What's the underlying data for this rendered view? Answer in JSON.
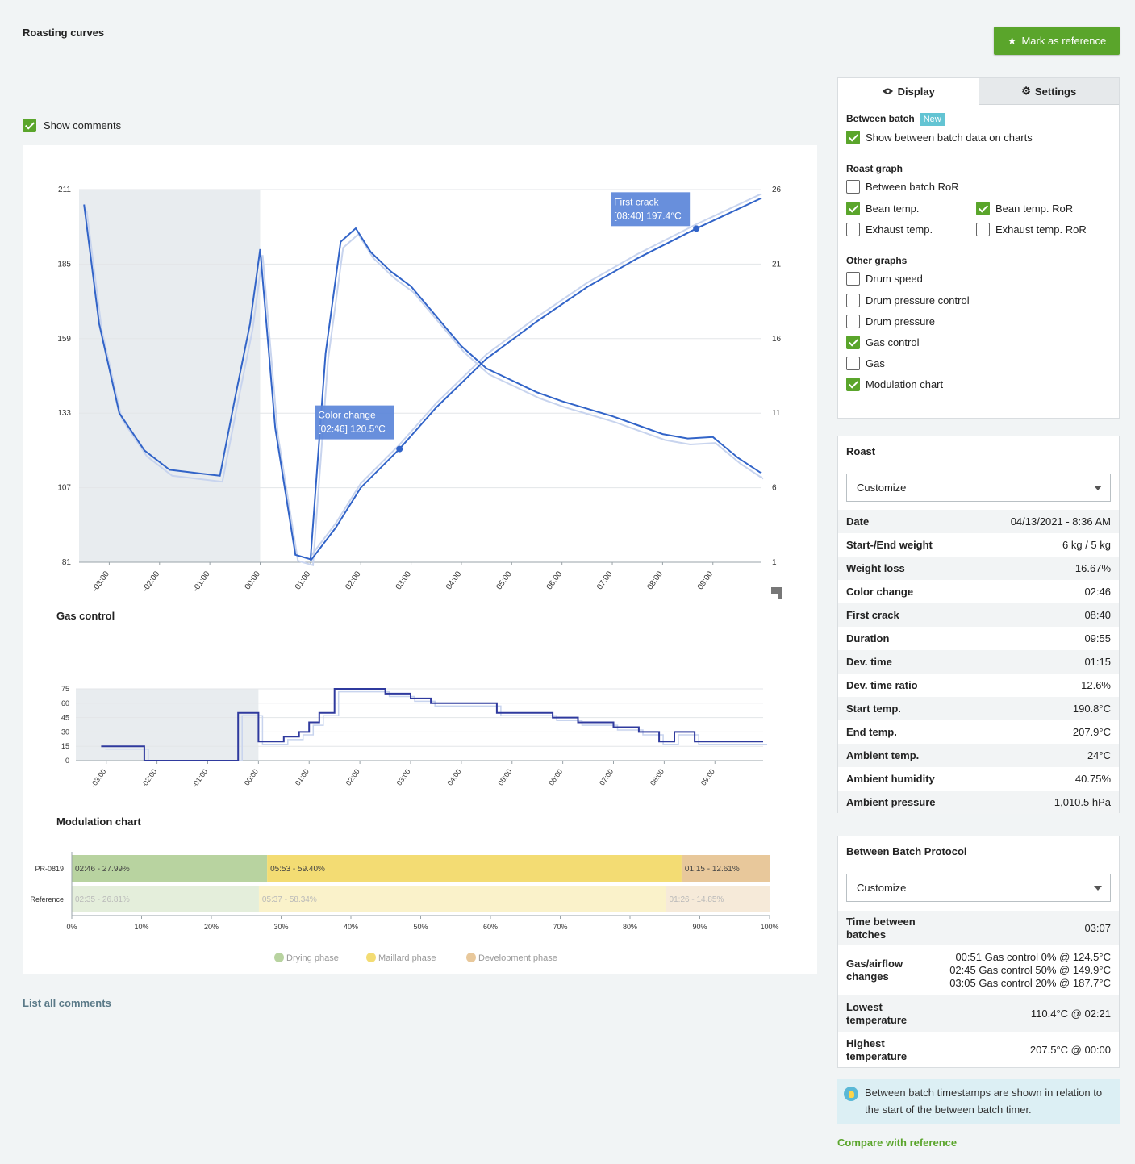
{
  "header": {
    "title": "Roasting curves",
    "mark_reference_label": "Mark as reference"
  },
  "show_comments_label": "Show comments",
  "list_comments_label": "List all comments",
  "compare_label": "Compare with reference",
  "colors": {
    "accent": "#5aa52b",
    "bean": "#3264c8",
    "reference": "#c8d4ee",
    "drying": "#b8d3a0",
    "maillard": "#f3dc73",
    "development": "#e8c89b"
  },
  "display_panel": {
    "tabs": {
      "display": "Display",
      "settings": "Settings"
    },
    "between_batch": {
      "title": "Between batch",
      "badge": "New",
      "show_label": "Show between batch data on charts"
    },
    "roast_graph": {
      "title": "Roast graph",
      "between_batch_ror": "Between batch RoR",
      "bean_temp": "Bean temp.",
      "bean_temp_ror": "Bean temp. RoR",
      "exhaust_temp": "Exhaust temp.",
      "exhaust_temp_ror": "Exhaust temp. RoR"
    },
    "other_graphs": {
      "title": "Other graphs",
      "drum_speed": "Drum speed",
      "drum_pressure_control": "Drum pressure control",
      "drum_pressure": "Drum pressure",
      "gas_control": "Gas control",
      "gas": "Gas",
      "modulation_chart": "Modulation chart"
    }
  },
  "roast_panel": {
    "title": "Roast",
    "select_value": "Customize",
    "rows": [
      {
        "k": "Date",
        "v": "04/13/2021 - 8:36 AM"
      },
      {
        "k": "Start-/End weight",
        "v": "6 kg / 5 kg"
      },
      {
        "k": "Weight loss",
        "v": "-16.67%"
      },
      {
        "k": "Color change",
        "v": "02:46"
      },
      {
        "k": "First crack",
        "v": "08:40"
      },
      {
        "k": "Duration",
        "v": "09:55"
      },
      {
        "k": "Dev. time",
        "v": "01:15"
      },
      {
        "k": "Dev. time ratio",
        "v": "12.6%"
      },
      {
        "k": "Start temp.",
        "v": "190.8°C"
      },
      {
        "k": "End temp.",
        "v": "207.9°C"
      },
      {
        "k": "Ambient temp.",
        "v": "24°C"
      },
      {
        "k": "Ambient humidity",
        "v": "40.75%"
      },
      {
        "k": "Ambient pressure",
        "v": "1,010.5 hPa"
      }
    ]
  },
  "bb_panel": {
    "title": "Between Batch Protocol",
    "select_value": "Customize",
    "time_between_label": "Time between batches",
    "time_between_value": "03:07",
    "gas_label": "Gas/airflow changes",
    "gas_changes": [
      "00:51 Gas control 0% @ 124.5°C",
      "02:45 Gas control 50% @ 149.9°C",
      "03:05 Gas control 20% @ 187.7°C"
    ],
    "lowest_label": "Lowest temperature",
    "lowest_value": "110.4°C @ 02:21",
    "highest_label": "Highest temperature",
    "highest_value": "207.5°C @ 00:00"
  },
  "info_text": "Between batch timestamps are shown in relation to the start of the between batch timer.",
  "chart_data": [
    {
      "type": "line",
      "title": "",
      "x_ticks": [
        "-03:00",
        "-02:00",
        "-01:00",
        "00:00",
        "01:00",
        "02:00",
        "03:00",
        "04:00",
        "05:00",
        "06:00",
        "07:00",
        "08:00",
        "09:00"
      ],
      "xlim": [
        -3.6,
        9.95
      ],
      "ylim": [
        81,
        211
      ],
      "y_ticks": [
        81,
        107,
        133,
        159,
        185,
        211
      ],
      "y2lim": [
        1,
        26
      ],
      "y2_ticks": [
        1,
        6,
        11,
        16,
        21,
        26
      ],
      "between_batch_shaded": [
        -3.6,
        0
      ],
      "annotations": [
        {
          "label": "Color change",
          "value": "[02:46] 120.5°C",
          "x": 2.77,
          "y": 120.5
        },
        {
          "label": "First crack",
          "value": "[08:40] 197.4°C",
          "x": 8.67,
          "y": 197.4
        }
      ],
      "series": [
        {
          "name": "Bean temp.",
          "x": [
            1.0,
            1.5,
            2.0,
            2.77,
            3.5,
            4.5,
            5.5,
            6.5,
            7.5,
            8.67,
            9.95
          ],
          "y": [
            81.5,
            93,
            107,
            120.5,
            135,
            152,
            165,
            177,
            187,
            197.4,
            207.9
          ]
        },
        {
          "name": "Bean temp. RoR",
          "x": [
            -3.5,
            -3.2,
            -2.8,
            -2.3,
            -1.8,
            -1.3,
            -0.8,
            -0.5,
            -0.2,
            0,
            0.3,
            0.7,
            1.0,
            1.3,
            1.6,
            1.9,
            2.2,
            2.6,
            3.0,
            3.5,
            4.0,
            4.5,
            5.0,
            5.5,
            6.0,
            6.5,
            7.0,
            7.5,
            8.0,
            8.5,
            9.0,
            9.5,
            9.95
          ],
          "y": [
            25,
            17,
            11,
            8.5,
            7.2,
            7.0,
            6.8,
            12,
            17,
            22,
            10,
            1.5,
            1.2,
            15,
            22.5,
            23.4,
            21.8,
            20.5,
            19.5,
            17.5,
            15.5,
            14.0,
            13.2,
            12.4,
            11.8,
            11.3,
            10.8,
            10.2,
            9.6,
            9.3,
            9.4,
            8.0,
            7.0
          ]
        }
      ]
    },
    {
      "type": "line",
      "title": "Gas control",
      "x_ticks": [
        "-03:00",
        "-02:00",
        "-01:00",
        "00:00",
        "01:00",
        "02:00",
        "03:00",
        "04:00",
        "05:00",
        "06:00",
        "07:00",
        "08:00",
        "09:00"
      ],
      "xlim": [
        -3.6,
        9.95
      ],
      "ylim": [
        0,
        75
      ],
      "y_ticks": [
        0,
        15,
        30,
        45,
        60,
        75
      ],
      "series": [
        {
          "name": "Gas control",
          "x": [
            -3.1,
            -2.25,
            -2.25,
            -0.4,
            -0.4,
            0,
            0,
            0.5,
            0.5,
            0.8,
            0.8,
            1.0,
            1.0,
            1.2,
            1.2,
            1.5,
            1.5,
            2.5,
            2.5,
            3.0,
            3.0,
            3.4,
            3.4,
            4.7,
            4.7,
            5.8,
            5.8,
            6.3,
            6.3,
            7.0,
            7.0,
            7.5,
            7.5,
            7.9,
            7.9,
            8.2,
            8.2,
            8.6,
            8.6,
            9.95
          ],
          "y": [
            15,
            15,
            0,
            0,
            50,
            50,
            20,
            20,
            25,
            25,
            30,
            30,
            40,
            40,
            50,
            50,
            75,
            75,
            70,
            70,
            65,
            65,
            60,
            60,
            50,
            50,
            45,
            45,
            40,
            40,
            35,
            35,
            30,
            30,
            20,
            20,
            30,
            30,
            20,
            20
          ]
        }
      ]
    },
    {
      "type": "bar",
      "title": "Modulation chart",
      "categories": [
        "PR-0819",
        "Reference"
      ],
      "x_ticks": [
        "0%",
        "10%",
        "20%",
        "30%",
        "40%",
        "50%",
        "60%",
        "70%",
        "80%",
        "90%",
        "100%"
      ],
      "legend": [
        "Drying phase",
        "Maillard phase",
        "Development phase"
      ],
      "legend_placement": "bottom",
      "series": [
        {
          "name": "Drying phase",
          "values": [
            27.99,
            26.81
          ],
          "labels": [
            "02:46 - 27.99%",
            "02:35 - 26.81%"
          ]
        },
        {
          "name": "Maillard phase",
          "values": [
            59.4,
            58.34
          ],
          "labels": [
            "05:53 - 59.40%",
            "05:37 - 58.34%"
          ]
        },
        {
          "name": "Development phase",
          "values": [
            12.61,
            14.85
          ],
          "labels": [
            "01:15 - 12.61%",
            "01:26 - 14.85%"
          ]
        }
      ]
    }
  ]
}
